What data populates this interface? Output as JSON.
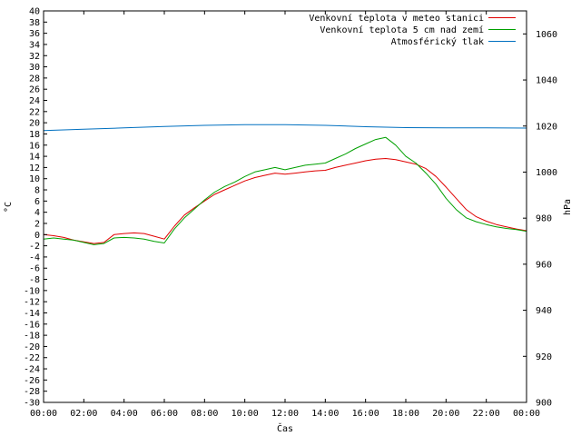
{
  "chart_data": {
    "type": "line",
    "xlabel": "Čas",
    "ylabel": "°C",
    "y2label": "hPa",
    "x_ticks": [
      "00:00",
      "02:00",
      "04:00",
      "06:00",
      "08:00",
      "10:00",
      "12:00",
      "14:00",
      "16:00",
      "18:00",
      "20:00",
      "22:00",
      "00:00"
    ],
    "xlim": [
      0,
      24
    ],
    "ylim": [
      -30,
      40
    ],
    "y_ticks": [
      40,
      38,
      36,
      34,
      32,
      30,
      28,
      26,
      24,
      22,
      20,
      18,
      16,
      14,
      12,
      10,
      8,
      6,
      4,
      2,
      0,
      -2,
      -4,
      -6,
      -8,
      -10,
      -12,
      -14,
      -16,
      -18,
      -20,
      -22,
      -24,
      -26,
      -28,
      -30
    ],
    "y2lim": [
      900,
      1070
    ],
    "y2_ticks": [
      1060,
      1040,
      1020,
      1000,
      980,
      960,
      940,
      920,
      900
    ],
    "grid": false,
    "legend_position": "top-right",
    "series": [
      {
        "name": "Venkovní teplota v meteo stanici",
        "color": "#e00000",
        "axis": "left",
        "x": [
          0,
          0.5,
          1,
          1.5,
          2,
          2.5,
          3,
          3.5,
          4,
          4.5,
          5,
          5.5,
          6,
          6.5,
          7,
          7.5,
          8,
          8.5,
          9,
          9.5,
          10,
          10.5,
          11,
          11.5,
          12,
          12.5,
          13,
          13.5,
          14,
          14.5,
          15,
          15.5,
          16,
          16.5,
          17,
          17.5,
          18,
          18.5,
          19,
          19.5,
          20,
          20.5,
          21,
          21.5,
          22,
          22.5,
          23,
          23.5,
          24
        ],
        "y": [
          0,
          -0.2,
          -0.5,
          -1,
          -1.3,
          -1.6,
          -1.4,
          0,
          0.2,
          0.3,
          0.2,
          -0.3,
          -0.8,
          1.5,
          3.5,
          4.8,
          6,
          7.2,
          8,
          8.8,
          9.6,
          10.2,
          10.6,
          11,
          10.8,
          11,
          11.2,
          11.4,
          11.5,
          12,
          12.4,
          12.8,
          13.2,
          13.5,
          13.6,
          13.4,
          13,
          12.6,
          11.8,
          10.4,
          8.5,
          6.5,
          4.5,
          3.2,
          2.4,
          1.8,
          1.4,
          1,
          0.7
        ]
      },
      {
        "name": "Venkovní teplota 5 cm nad zemí",
        "color": "#00a000",
        "axis": "left",
        "x": [
          0,
          0.5,
          1,
          1.5,
          2,
          2.5,
          3,
          3.5,
          4,
          4.5,
          5,
          5.5,
          6,
          6.5,
          7,
          7.5,
          8,
          8.5,
          9,
          9.5,
          10,
          10.5,
          11,
          11.5,
          12,
          12.5,
          13,
          13.5,
          14,
          14.5,
          15,
          15.5,
          16,
          16.5,
          17,
          17.5,
          18,
          18.5,
          19,
          19.5,
          20,
          20.5,
          21,
          21.5,
          22,
          22.5,
          23,
          23.5,
          24
        ],
        "y": [
          -0.8,
          -0.6,
          -0.8,
          -1,
          -1.4,
          -1.8,
          -1.6,
          -0.6,
          -0.5,
          -0.6,
          -0.8,
          -1.2,
          -1.5,
          1,
          3,
          4.6,
          6.2,
          7.6,
          8.6,
          9.4,
          10.4,
          11.2,
          11.6,
          12,
          11.6,
          12,
          12.4,
          12.6,
          12.8,
          13.6,
          14.4,
          15.4,
          16.2,
          17,
          17.4,
          16,
          14,
          12.8,
          11,
          9,
          6.5,
          4.5,
          3,
          2.3,
          1.8,
          1.4,
          1.1,
          0.9,
          0.6
        ]
      },
      {
        "name": "Atmosférický tlak",
        "color": "#0070c0",
        "axis": "right",
        "x": [
          0,
          2,
          4,
          6,
          8,
          10,
          12,
          14,
          16,
          18,
          20,
          22,
          24
        ],
        "y": [
          1018,
          1018.6,
          1019.2,
          1019.8,
          1020.3,
          1020.6,
          1020.6,
          1020.3,
          1019.7,
          1019.3,
          1019.2,
          1019.2,
          1019.1
        ]
      }
    ]
  }
}
